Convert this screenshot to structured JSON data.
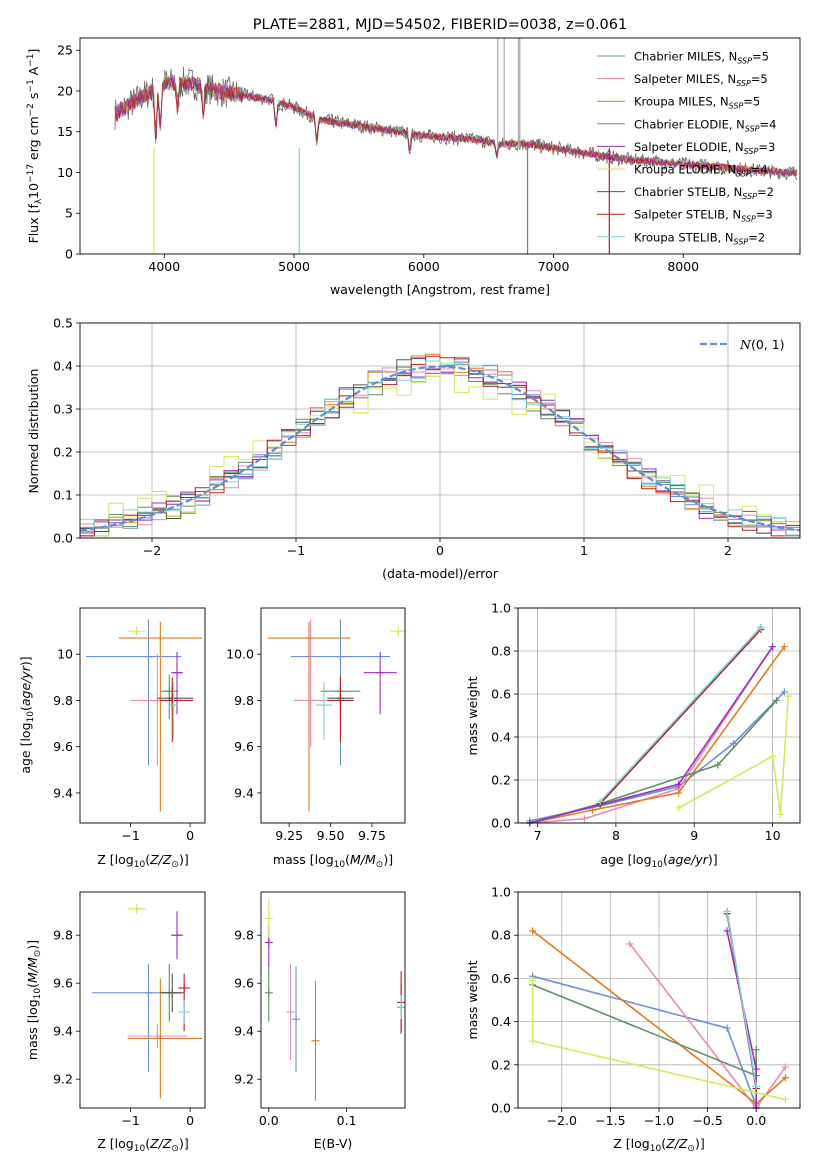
{
  "models": [
    {
      "name": "Chabrier MILES, N_SSP=5",
      "color": "#6a8fdc"
    },
    {
      "name": "Salpeter MILES, N_SSP=5",
      "color": "#e88ab8"
    },
    {
      "name": "Kroupa MILES, N_SSP=5",
      "color": "#e07b1f"
    },
    {
      "name": "Chabrier ELODIE, N_SSP=4",
      "color": "#5f8f62"
    },
    {
      "name": "Salpeter ELODIE, N_SSP=3",
      "color": "#9b30c0"
    },
    {
      "name": "Kroupa ELODIE, N_SSP=4",
      "color": "#d4ea5c"
    },
    {
      "name": "Chabrier STELIB, N_SSP=2",
      "color": "#555555"
    },
    {
      "name": "Salpeter STELIB, N_SSP=3",
      "color": "#b22222"
    },
    {
      "name": "Kroupa STELIB, N_SSP=2",
      "color": "#7ed3d8"
    }
  ],
  "chart_data": [
    {
      "id": "spectrum",
      "type": "line",
      "title": "PLATE=2881, MJD=54502, FIBERID=0038, z=0.061",
      "xlabel": "wavelength [Angstrom, rest frame]",
      "ylabel": "Flux [f_λ 10^-17 erg cm^-2 s^-1 A^-1]",
      "xlim": [
        3350,
        8900
      ],
      "ylim": [
        0,
        26.5
      ],
      "xticks": [
        4000,
        5000,
        6000,
        7000,
        8000
      ],
      "yticks": [
        0,
        5,
        10,
        15,
        20,
        25
      ],
      "legend": "top-right",
      "x": [
        3600,
        3800,
        4000,
        4200,
        4400,
        4600,
        4800,
        5000,
        5200,
        5400,
        5600,
        5800,
        6000,
        6200,
        6400,
        6600,
        6800,
        7000,
        7200,
        7400,
        7600,
        7800,
        8000,
        8200,
        8400,
        8600,
        8800
      ],
      "y": [
        17,
        19,
        21,
        21,
        20,
        19.5,
        19,
        18,
        16.5,
        16,
        15.5,
        15,
        14.5,
        14.3,
        14,
        13.5,
        13.5,
        13,
        12.5,
        12,
        11.5,
        11.3,
        11,
        10.8,
        10.5,
        10.2,
        10
      ]
    },
    {
      "id": "residuals",
      "type": "line",
      "xlabel": "(data-model)/error",
      "ylabel": "Normed distribution",
      "xlim": [
        -2.5,
        2.5
      ],
      "ylim": [
        0,
        0.5
      ],
      "xticks": [
        -2,
        -1,
        0,
        1,
        2
      ],
      "yticks": [
        0.0,
        0.1,
        0.2,
        0.3,
        0.4,
        0.5
      ],
      "legend_label": "N(0,1)",
      "legend": "top-right",
      "series_mean": [
        0,
        0,
        0,
        0,
        0,
        0,
        0,
        0,
        0
      ],
      "series_sigma": [
        0.98,
        1.0,
        0.97,
        1.02,
        0.99,
        1.05,
        0.98,
        1.0,
        1.01
      ]
    },
    {
      "id": "age_vs_Z",
      "type": "scatter",
      "xlabel": "Z [log10(Z/Z⊙)]",
      "ylabel": "age [log10(age/yr)]",
      "xlim": [
        -1.85,
        0.25
      ],
      "ylim": [
        9.27,
        10.2
      ],
      "xticks": [
        -1,
        0
      ],
      "yticks": [
        9.4,
        9.6,
        9.8,
        10.0
      ],
      "points": [
        {
          "x": -0.7,
          "y": 9.99,
          "xerr": [
            1.05,
            0.55
          ],
          "yerr": [
            0.47,
            0.16
          ]
        },
        {
          "x": -0.55,
          "y": 9.8,
          "xerr": [
            0.45,
            0.3
          ],
          "yerr": [
            0.28,
            0.2
          ]
        },
        {
          "x": -0.5,
          "y": 10.07,
          "xerr": [
            0.7,
            0.7
          ],
          "yerr": [
            0.75,
            0.07
          ]
        },
        {
          "x": -0.35,
          "y": 9.84,
          "xerr": [
            0.15,
            0.15
          ],
          "yerr": [
            0.12,
            0.07
          ]
        },
        {
          "x": -0.22,
          "y": 9.92,
          "xerr": [
            0.1,
            0.1
          ],
          "yerr": [
            0.18,
            0.09
          ]
        },
        {
          "x": -0.9,
          "y": 10.1,
          "xerr": [
            0.15,
            0.15
          ],
          "yerr": [
            0.02,
            0.02
          ]
        },
        {
          "x": -0.3,
          "y": 9.81,
          "xerr": [
            0.25,
            0.35
          ],
          "yerr": [
            0.05,
            0.05
          ]
        },
        {
          "x": -0.3,
          "y": 9.8,
          "xerr": [
            0.2,
            0.35
          ],
          "yerr": [
            0.18,
            0.1
          ]
        },
        {
          "x": -0.28,
          "y": 9.78,
          "xerr": [
            0.05,
            0.05
          ],
          "yerr": [
            0.15,
            0.1
          ]
        }
      ]
    },
    {
      "id": "age_vs_mass",
      "type": "scatter",
      "xlabel": "mass [log10(M/M⊙)]",
      "ylabel": "",
      "xlim": [
        9.08,
        9.95
      ],
      "ylim": [
        9.27,
        10.2
      ],
      "xticks": [
        9.25,
        9.5,
        9.75
      ],
      "ytick_labels": [
        "9.4",
        "9.6",
        "9.8",
        "10.0"
      ],
      "xtick_labels": [
        "9.25",
        "9.50",
        "9.75"
      ],
      "yticks": [
        9.4,
        9.6,
        9.8,
        10.0
      ],
      "points": [
        {
          "x": 9.56,
          "y": 9.99,
          "xerr": [
            0.3,
            0.3
          ],
          "yerr": [
            0.47,
            0.16
          ]
        },
        {
          "x": 9.38,
          "y": 9.8,
          "xerr": [
            0.1,
            0.1
          ],
          "yerr": [
            0.2,
            0.35
          ]
        },
        {
          "x": 9.37,
          "y": 10.07,
          "xerr": [
            0.25,
            0.25
          ],
          "yerr": [
            0.75,
            0.07
          ]
        },
        {
          "x": 9.56,
          "y": 9.84,
          "xerr": [
            0.12,
            0.12
          ],
          "yerr": [
            0.12,
            0.07
          ]
        },
        {
          "x": 9.8,
          "y": 9.92,
          "xerr": [
            0.1,
            0.1
          ],
          "yerr": [
            0.18,
            0.09
          ]
        },
        {
          "x": 9.91,
          "y": 10.1,
          "xerr": [
            0.05,
            0.05
          ],
          "yerr": [
            0.02,
            0.02
          ]
        },
        {
          "x": 9.56,
          "y": 9.81,
          "xerr": [
            0.08,
            0.08
          ],
          "yerr": [
            0.05,
            0.05
          ]
        },
        {
          "x": 9.56,
          "y": 9.8,
          "xerr": [
            0.08,
            0.08
          ],
          "yerr": [
            0.18,
            0.1
          ]
        },
        {
          "x": 9.46,
          "y": 9.78,
          "xerr": [
            0.05,
            0.05
          ],
          "yerr": [
            0.15,
            0.1
          ]
        }
      ]
    },
    {
      "id": "weight_vs_age",
      "type": "line",
      "xlabel": "age [log10(age/yr)]",
      "ylabel": "mass weight",
      "xlim": [
        6.75,
        10.35
      ],
      "ylim": [
        0,
        1.0
      ],
      "xticks": [
        7,
        8,
        9,
        10
      ],
      "yticks": [
        0.0,
        0.2,
        0.4,
        0.6,
        0.8,
        1.0
      ],
      "series": [
        {
          "x": [
            6.9,
            7.8,
            8.8,
            9.5,
            10.15
          ],
          "y": [
            0.01,
            0.08,
            0.17,
            0.37,
            0.61
          ]
        },
        {
          "x": [
            6.9,
            7.6,
            8.8,
            10.0
          ],
          "y": [
            0.0,
            0.02,
            0.16,
            0.82
          ]
        },
        {
          "x": [
            6.9,
            7.7,
            8.8,
            10.15
          ],
          "y": [
            0.0,
            0.06,
            0.14,
            0.82
          ]
        },
        {
          "x": [
            6.9,
            7.8,
            9.3,
            10.05
          ],
          "y": [
            0.0,
            0.09,
            0.27,
            0.57
          ]
        },
        {
          "x": [
            6.9,
            8.8,
            10.0
          ],
          "y": [
            0.0,
            0.18,
            0.82
          ]
        },
        {
          "x": [
            8.8,
            10.0,
            10.1,
            10.2
          ],
          "y": [
            0.07,
            0.31,
            0.04,
            0.59
          ]
        },
        {
          "x": [
            7.8,
            9.85
          ],
          "y": [
            0.09,
            0.91
          ]
        },
        {
          "x": [
            7.8,
            9.85
          ],
          "y": [
            0.09,
            0.9
          ]
        },
        {
          "x": [
            7.8,
            9.85
          ],
          "y": [
            0.1,
            0.91
          ]
        }
      ]
    },
    {
      "id": "mass_vs_Z",
      "type": "scatter",
      "xlabel": "Z [log10(Z/Z⊙)]",
      "ylabel": "mass [log10(M/M⊙)]",
      "xlim": [
        -1.85,
        0.25
      ],
      "ylim": [
        9.08,
        9.98
      ],
      "xticks": [
        -1,
        0
      ],
      "yticks": [
        9.2,
        9.4,
        9.6,
        9.8
      ],
      "points": [
        {
          "x": -0.7,
          "y": 9.56,
          "xerr": [
            0.95,
            0.55
          ],
          "yerr": [
            0.33,
            0.12
          ]
        },
        {
          "x": -0.55,
          "y": 9.38,
          "xerr": [
            0.5,
            0.5
          ],
          "yerr": [
            0.05,
            0.05
          ]
        },
        {
          "x": -0.5,
          "y": 9.37,
          "xerr": [
            0.55,
            0.7
          ],
          "yerr": [
            0.25,
            0.25
          ]
        },
        {
          "x": -0.35,
          "y": 9.56,
          "xerr": [
            0.15,
            0.15
          ],
          "yerr": [
            0.12,
            0.12
          ]
        },
        {
          "x": -0.22,
          "y": 9.8,
          "xerr": [
            0.1,
            0.1
          ],
          "yerr": [
            0.1,
            0.1
          ]
        },
        {
          "x": -0.9,
          "y": 9.91,
          "xerr": [
            0.15,
            0.15
          ],
          "yerr": [
            0.02,
            0.02
          ]
        },
        {
          "x": -0.3,
          "y": 9.56,
          "xerr": [
            0.2,
            0.2
          ],
          "yerr": [
            0.08,
            0.08
          ]
        },
        {
          "x": -0.1,
          "y": 9.58,
          "xerr": [
            0.1,
            0.1
          ],
          "yerr": [
            0.18,
            0.06
          ]
        },
        {
          "x": -0.1,
          "y": 9.48,
          "xerr": [
            0.1,
            0.1
          ],
          "yerr": [
            0.05,
            0.05
          ]
        }
      ]
    },
    {
      "id": "mass_vs_ebv",
      "type": "scatter",
      "xlabel": "E(B-V)",
      "ylabel": "",
      "xlim": [
        -0.01,
        0.175
      ],
      "ylim": [
        9.08,
        9.98
      ],
      "xticks": [
        0.0,
        0.1
      ],
      "xtick_labels": [
        "0.0",
        "0.1"
      ],
      "yticks": [
        9.2,
        9.4,
        9.6,
        9.8
      ],
      "ytick_labels": [
        "9.2",
        "9.4",
        "9.6",
        "9.8"
      ],
      "points": [
        {
          "x": 0.035,
          "y": 9.45,
          "xerr": [
            0,
            0
          ],
          "yerr": [
            0.22,
            0.22
          ]
        },
        {
          "x": 0.028,
          "y": 9.48,
          "xerr": [
            0,
            0
          ],
          "yerr": [
            0.2,
            0.2
          ]
        },
        {
          "x": 0.06,
          "y": 9.36,
          "xerr": [
            0,
            0
          ],
          "yerr": [
            0.25,
            0.25
          ]
        },
        {
          "x": 0.0,
          "y": 9.56,
          "xerr": [
            0,
            0
          ],
          "yerr": [
            0.12,
            0.12
          ]
        },
        {
          "x": 0.0,
          "y": 9.77,
          "xerr": [
            0,
            0
          ],
          "yerr": [
            0.1,
            0.07
          ]
        },
        {
          "x": 0.0,
          "y": 9.87,
          "xerr": [
            0,
            0
          ],
          "yerr": [
            0.08,
            0.08
          ]
        },
        {
          "x": 0.17,
          "y": 9.5,
          "xerr": [
            0,
            0
          ],
          "yerr": [
            0.1,
            0.1
          ]
        },
        {
          "x": 0.17,
          "y": 9.52,
          "xerr": [
            0,
            0
          ],
          "yerr": [
            0.13,
            0.13
          ]
        },
        {
          "x": 0.17,
          "y": 9.5,
          "xerr": [
            0,
            0
          ],
          "yerr": [
            0.05,
            0.05
          ]
        }
      ]
    },
    {
      "id": "weight_vs_Z",
      "type": "line",
      "xlabel": "Z [log10(Z/Z⊙)]",
      "ylabel": "mass weight",
      "xlim": [
        -2.45,
        0.45
      ],
      "ylim": [
        0,
        1.0
      ],
      "xticks": [
        -2.0,
        -1.5,
        -1.0,
        -0.5,
        0.0
      ],
      "xtick_labels": [
        "−2.0",
        "−1.5",
        "−1.0",
        "−0.5",
        "0.0"
      ],
      "yticks": [
        0.0,
        0.2,
        0.4,
        0.6,
        0.8,
        1.0
      ],
      "series": [
        {
          "x": [
            -2.3,
            -0.3,
            0.0
          ],
          "y": [
            0.61,
            0.37,
            0.01
          ]
        },
        {
          "x": [
            -1.3,
            0.0,
            0.3
          ],
          "y": [
            0.76,
            0.0,
            0.19
          ]
        },
        {
          "x": [
            -2.3,
            0.0,
            0.3
          ],
          "y": [
            0.82,
            0.02,
            0.14
          ]
        },
        {
          "x": [
            -2.3,
            0.0,
            0.0,
            0.0
          ],
          "y": [
            0.57,
            0.15,
            0.27,
            0.0
          ]
        },
        {
          "x": [
            -0.3,
            0.0,
            0.0
          ],
          "y": [
            0.82,
            0.18,
            0.0
          ]
        },
        {
          "x": [
            -2.3,
            -2.3,
            0.3
          ],
          "y": [
            0.59,
            0.31,
            0.04
          ]
        },
        {
          "x": [
            -0.3,
            0.0
          ],
          "y": [
            0.91,
            0.09
          ]
        },
        {
          "x": [
            -0.3,
            0.0
          ],
          "y": [
            0.9,
            0.09
          ]
        },
        {
          "x": [
            -0.3,
            0.0
          ],
          "y": [
            0.91,
            0.1
          ]
        }
      ]
    }
  ]
}
